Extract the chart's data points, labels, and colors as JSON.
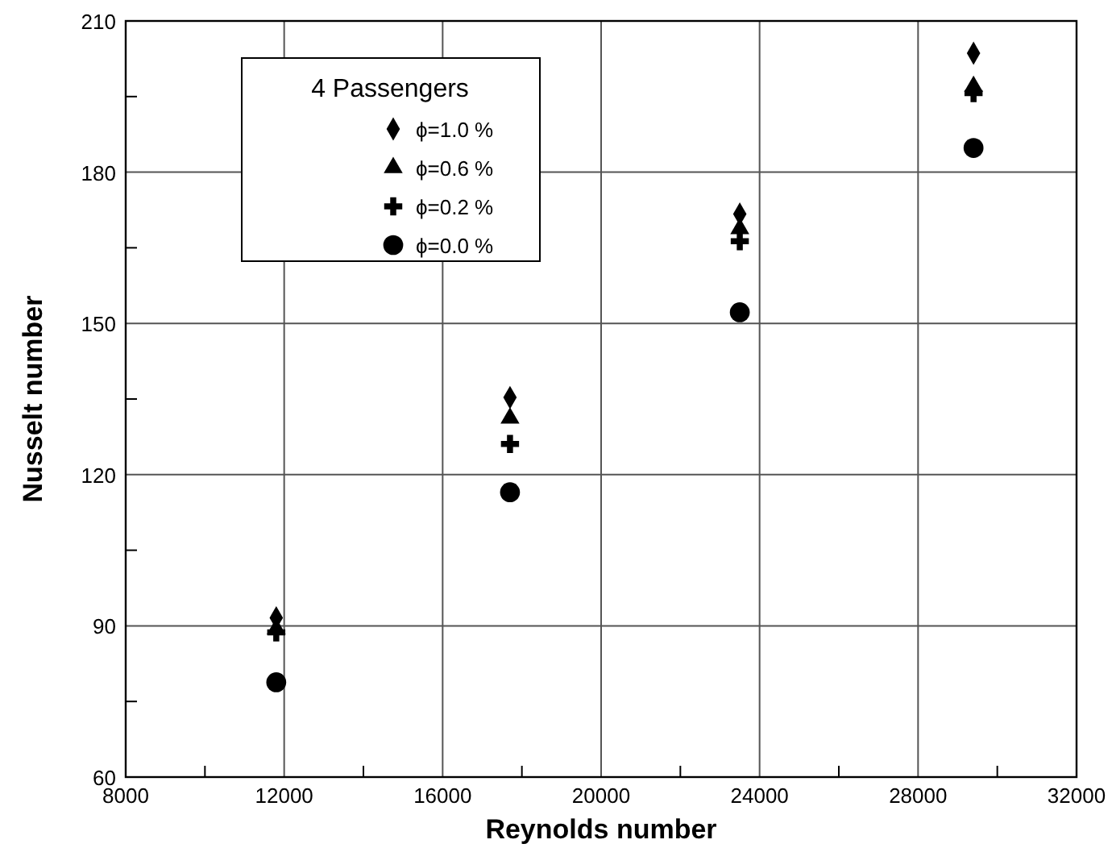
{
  "chart_data": {
    "type": "scatter",
    "xlabel": "Reynolds number",
    "ylabel": "Nusselt number",
    "legend_title": "4 Passengers",
    "legend": "top left",
    "grid": true,
    "x": [
      11800,
      17700,
      23500,
      29400
    ],
    "xlim": [
      8000,
      32000
    ],
    "xticks": [
      8000,
      {
        "value": 10000,
        "label": null
      },
      12000,
      {
        "value": 14000,
        "label": null
      },
      16000,
      {
        "value": 18000,
        "label": null
      },
      20000,
      {
        "value": 22000,
        "label": null
      },
      24000,
      {
        "value": 26000,
        "label": null
      },
      28000,
      {
        "value": 30000,
        "label": null
      },
      32000
    ],
    "ylim": [
      60,
      210
    ],
    "yticks": [
      60,
      {
        "value": 75,
        "label": null
      },
      90,
      {
        "value": 105,
        "label": null
      },
      120,
      {
        "value": 135,
        "label": null
      },
      150,
      {
        "value": 165,
        "label": null
      },
      180,
      {
        "value": 195,
        "label": null
      },
      210
    ],
    "series": [
      {
        "name": "ϕ=1.0 %",
        "color": "#000000",
        "marker": "diamond",
        "values": [
          91.6,
          135.3,
          171.7,
          203.6
        ]
      },
      {
        "name": "ϕ=0.6 %",
        "color": "#000000",
        "marker": "triangle",
        "values": [
          89.4,
          131.2,
          168.8,
          197
        ]
      },
      {
        "name": "ϕ=0.2 %",
        "color": "#000000",
        "marker": "cross",
        "values": [
          88.7,
          126.1,
          166.3,
          195.7
        ]
      },
      {
        "name": "ϕ=0.0 %",
        "color": "#000000",
        "marker": "circle",
        "values": [
          78.8,
          116.5,
          152.2,
          184.8
        ]
      }
    ]
  }
}
